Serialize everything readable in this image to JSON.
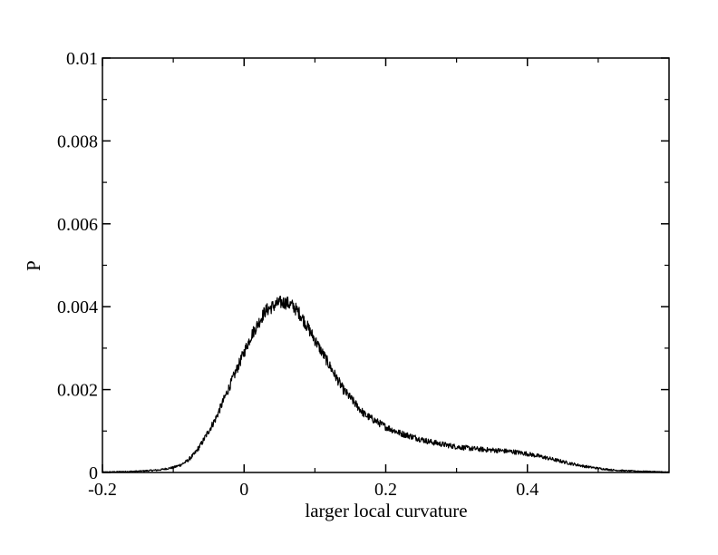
{
  "chart_data": {
    "type": "line",
    "title": "",
    "xlabel": "larger local curvature",
    "ylabel": "P",
    "xlim": [
      -0.2,
      0.6
    ],
    "ylim": [
      0,
      0.01
    ],
    "x_major_ticks": [
      -0.2,
      0,
      0.2,
      0.4
    ],
    "x_tick_labels": [
      "-0.2",
      "0",
      "0.2",
      "0.4"
    ],
    "y_major_ticks": [
      0,
      0.002,
      0.004,
      0.006,
      0.008,
      0.01
    ],
    "y_tick_labels": [
      "0",
      "0.002",
      "0.004",
      "0.006",
      "0.008",
      "0.01"
    ],
    "grid": false,
    "legend": "none",
    "line_color": "#000000",
    "series": [
      {
        "x": [
          -0.2,
          -0.15,
          -0.12,
          -0.1,
          -0.09,
          -0.08,
          -0.07,
          -0.06,
          -0.05,
          -0.04,
          -0.03,
          -0.02,
          -0.01,
          0,
          0.01,
          0.02,
          0.03,
          0.04,
          0.05,
          0.06,
          0.07,
          0.08,
          0.09,
          0.1,
          0.11,
          0.12,
          0.13,
          0.14,
          0.15,
          0.16,
          0.17,
          0.18,
          0.2,
          0.22,
          0.24,
          0.26,
          0.28,
          0.3,
          0.32,
          0.34,
          0.36,
          0.38,
          0.4,
          0.42,
          0.44,
          0.46,
          0.48,
          0.5,
          0.52,
          0.54,
          0.56,
          0.58,
          0.6
        ],
        "values": [
          1e-05,
          3e-05,
          6e-05,
          0.00012,
          0.00018,
          0.00028,
          0.00045,
          0.0007,
          0.001,
          0.0013,
          0.0017,
          0.0021,
          0.0025,
          0.0029,
          0.0033,
          0.0036,
          0.0039,
          0.004,
          0.0041,
          0.0041,
          0.004,
          0.0038,
          0.0035,
          0.0032,
          0.0029,
          0.0026,
          0.0023,
          0.002,
          0.0018,
          0.0016,
          0.0014,
          0.0013,
          0.0011,
          0.00095,
          0.00085,
          0.00075,
          0.00068,
          0.00062,
          0.00058,
          0.00055,
          0.00053,
          0.0005,
          0.00045,
          0.00038,
          0.0003,
          0.00022,
          0.00015,
          0.0001,
          6e-05,
          4e-05,
          3e-05,
          2e-05,
          1e-05
        ]
      }
    ]
  }
}
